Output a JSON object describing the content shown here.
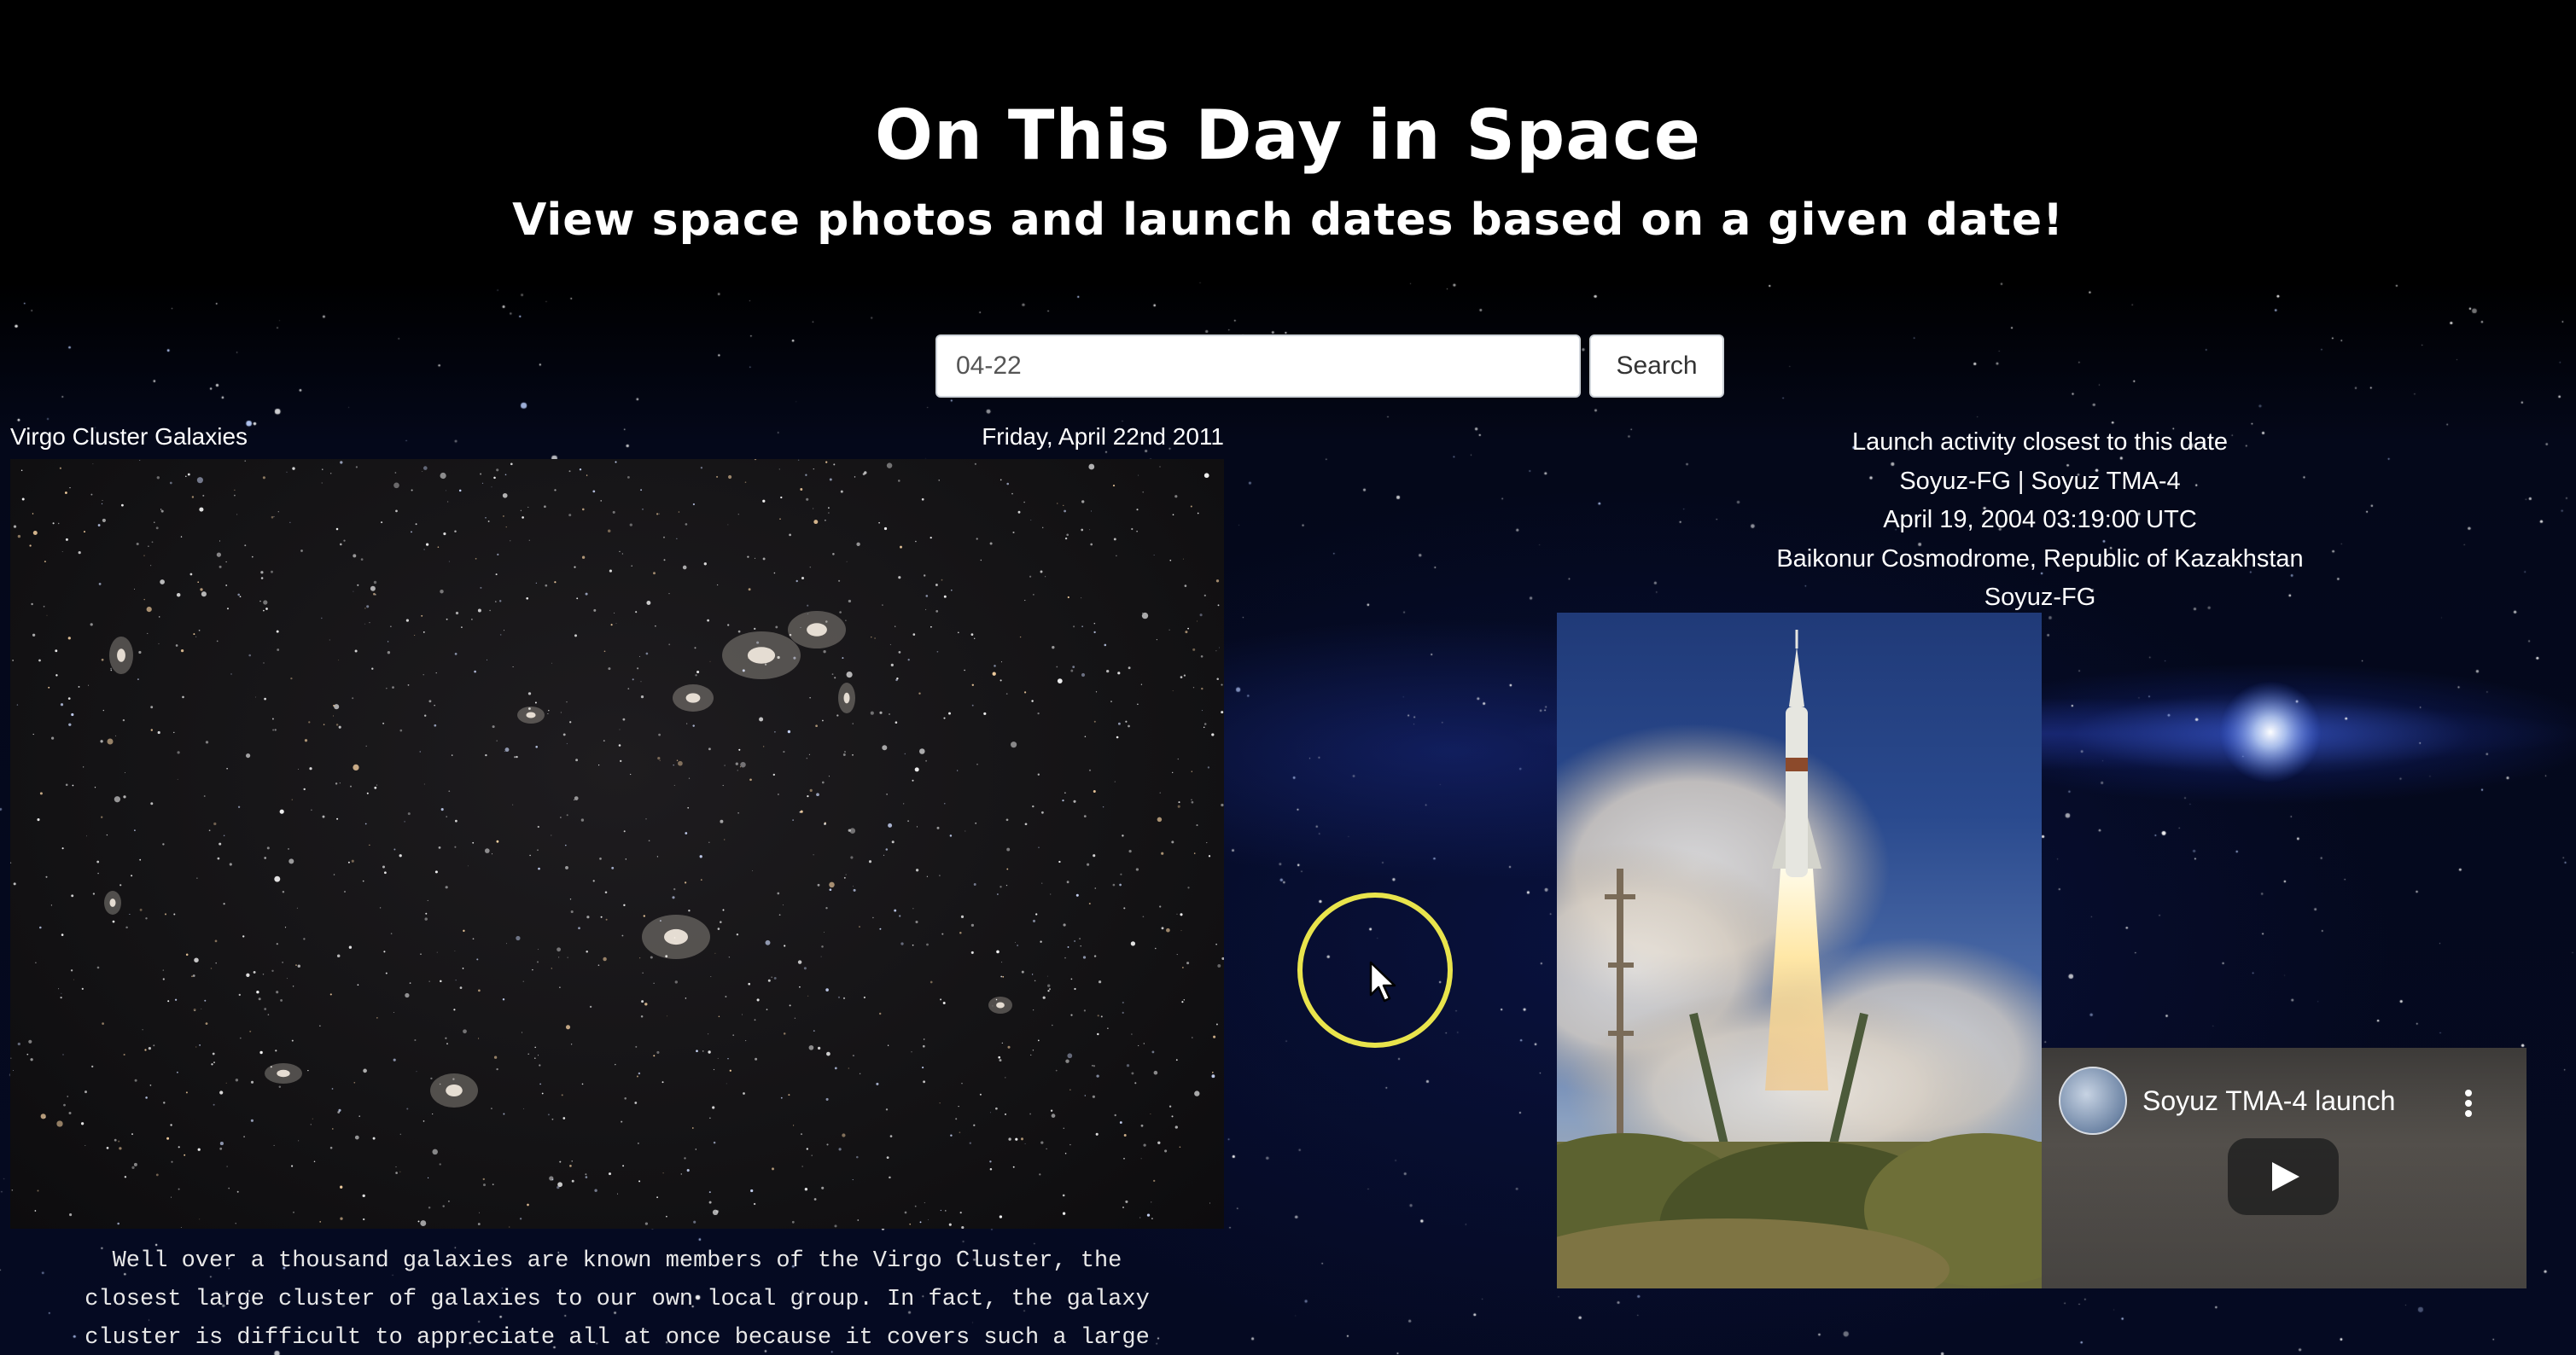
{
  "header": {
    "title": "On This Day in Space",
    "subtitle": "View space photos and launch dates based on a given date!"
  },
  "search": {
    "value": "04-22",
    "button_label": "Search"
  },
  "apod": {
    "title": "Virgo Cluster Galaxies",
    "date": "Friday, April 22nd 2011",
    "explanation": "Well over a thousand galaxies are known members of the Virgo Cluster, the\nclosest large cluster of galaxies to our own local group. In fact, the galaxy\ncluster is difficult to appreciate all at once because it covers such a large"
  },
  "launch": {
    "heading": "Launch activity closest to this date",
    "name": "Soyuz-FG | Soyuz TMA-4",
    "datetime": "April 19, 2004 03:19:00 UTC",
    "location": "Baikonur Cosmodrome, Republic of Kazakhstan",
    "rocket": "Soyuz-FG"
  },
  "video": {
    "title": "Soyuz TMA-4 launch",
    "channel_icon": "channel-avatar-icon",
    "menu_icon": "kebab-menu-icon",
    "play_icon": "play-icon"
  },
  "colors": {
    "background": "#000000",
    "cursor_highlight": "#e9e44c",
    "text": "#ffffff"
  }
}
